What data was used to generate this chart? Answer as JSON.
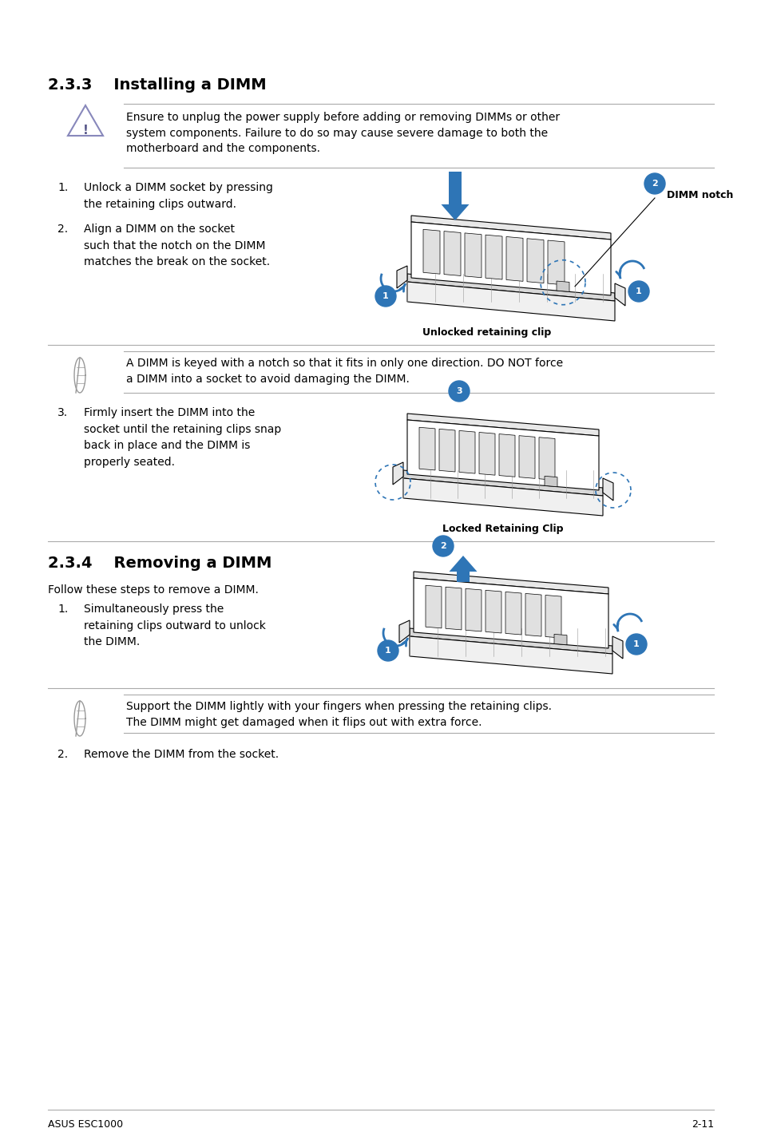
{
  "title_233": "2.3.3    Installing a DIMM",
  "title_234": "2.3.4    Removing a DIMM",
  "warning_text": "Ensure to unplug the power supply before adding or removing DIMMs or other\nsystem components. Failure to do so may cause severe damage to both the\nmotherboard and the components.",
  "note_text": "A DIMM is keyed with a notch so that it fits in only one direction. DO NOT force\na DIMM into a socket to avoid damaging the DIMM.",
  "note2_text": "Support the DIMM lightly with your fingers when pressing the retaining clips.\nThe DIMM might get damaged when it flips out with extra force.",
  "step1_text": "Unlock a DIMM socket by pressing\nthe retaining clips outward.",
  "step2_text": "Align a DIMM on the socket\nsuch that the notch on the DIMM\nmatches the break on the socket.",
  "step3_text": "Firmly insert the DIMM into the\nsocket until the retaining clips snap\nback in place and the DIMM is\nproperly seated.",
  "remove_intro": "Follow these steps to remove a DIMM.",
  "remove_step1": "Simultaneously press the\nretaining clips outward to unlock\nthe DIMM.",
  "remove_step2": "Remove the DIMM from the socket.",
  "label_dimm_notch": "DIMM notch",
  "label_unlocked": "Unlocked retaining clip",
  "label_locked": "Locked Retaining Clip",
  "footer_left": "ASUS ESC1000",
  "footer_right": "2-11",
  "bg_color": "#ffffff",
  "text_color": "#000000",
  "blue_color": "#2E75B6",
  "warn_icon_color": "#8888bb",
  "note_icon_color": "#888888"
}
